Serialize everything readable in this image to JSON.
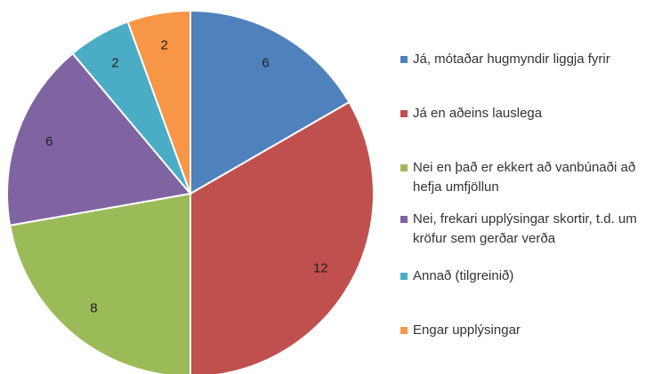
{
  "chart_data": {
    "type": "pie",
    "categories": [
      "Já, mótaðar hugmyndir liggja fyrir",
      "Já en aðeins lauslega",
      "Nei en það er ekkert að vanbúnaði að hefja umfjöllun",
      "Nei, frekari upplýsingar skortir, t.d. um kröfur sem gerðar verða",
      "Annað (tilgreinið)",
      "Engar upplýsingar"
    ],
    "values": [
      6,
      12,
      8,
      6,
      2,
      2
    ],
    "colors": [
      "#4f81bd",
      "#c0504d",
      "#9bbb59",
      "#8064a2",
      "#4bacc6",
      "#f79646"
    ],
    "legend": "right"
  }
}
